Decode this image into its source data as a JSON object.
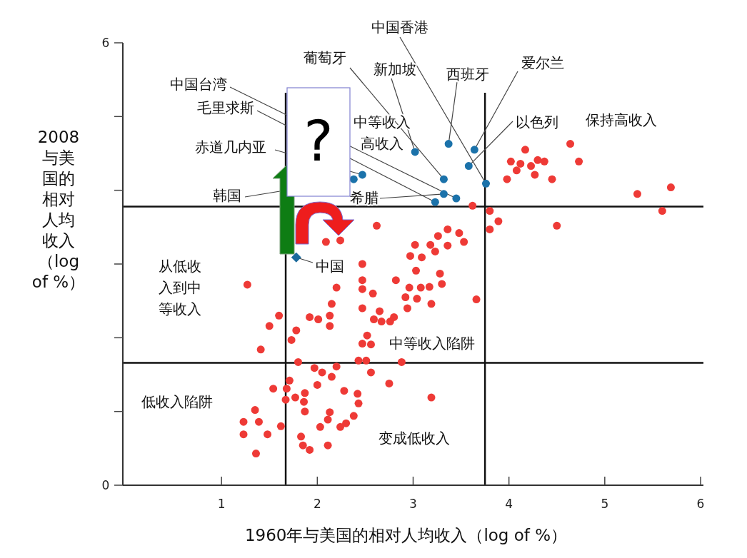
{
  "chart_data": {
    "type": "scatter",
    "xlabel": "1960年与美国的相对人均收入（log of %）",
    "ylabel": "2008与美国的相对人均收入（log of %）",
    "xlim": [
      0,
      6
    ],
    "ylim": [
      0,
      6
    ],
    "xticks": [
      1,
      2,
      3,
      4,
      5,
      6
    ],
    "yticks": [
      0,
      {
        "value": 1,
        "label": null
      },
      {
        "value": 2,
        "label": null
      },
      {
        "value": 3,
        "label": null
      },
      {
        "value": 4,
        "label": null
      },
      {
        "value": 5,
        "label": null
      },
      6
    ],
    "marker": "circle",
    "grid": false,
    "ref_lines": [
      {
        "axis": "x",
        "value": 1.67,
        "color": "#111111"
      },
      {
        "axis": "x",
        "value": 3.75,
        "color": "#111111"
      },
      {
        "axis": "y",
        "value": 3.78,
        "color": "#111111"
      },
      {
        "axis": "y",
        "value": 1.66,
        "color": "#111111"
      }
    ],
    "series": [
      {
        "color": "#ee3a36",
        "x": [
          4.64,
          4.17,
          4.02,
          4.12,
          4.08,
          4.3,
          4.37,
          4.73,
          4.23,
          4.27,
          3.98,
          4.45,
          5.34,
          5.69,
          5.6,
          4.5,
          3.62,
          3.8,
          3.89,
          3.8,
          2.62,
          2.09,
          2.24,
          3.36,
          3.48,
          3.26,
          3.53,
          3.02,
          3.18,
          3.36,
          3.23,
          2.97,
          3.09,
          2.47,
          3.03,
          3.28,
          2.82,
          2.47,
          2.2,
          2.47,
          2.96,
          3.08,
          3.17,
          3.3,
          2.58,
          1.27,
          2.92,
          3.04,
          3.19,
          3.66,
          2.15,
          2.47,
          2.94,
          2.65,
          1.6,
          2.13,
          1.92,
          2.01,
          2.59,
          2.67,
          2.76,
          2.8,
          2.13,
          1.5,
          1.78,
          1.73,
          2.52,
          2.47,
          2.56,
          1.41,
          1.8,
          2.43,
          2.51,
          2.88,
          1.97,
          2.05,
          2.2,
          2.15,
          2.56,
          2.75,
          1.71,
          1.54,
          1.68,
          2.0,
          2.28,
          2.42,
          1.87,
          1.77,
          1.67,
          1.86,
          2.43,
          3.19,
          1.87,
          2.13,
          1.35,
          1.23,
          1.39,
          2.11,
          2.38,
          2.3,
          2.24,
          2.03,
          1.62,
          1.23,
          1.48,
          1.83,
          1.85,
          1.92,
          2.11,
          1.36
        ],
        "values": [
          4.63,
          4.55,
          4.39,
          4.36,
          4.27,
          4.41,
          4.39,
          4.39,
          4.33,
          4.21,
          4.15,
          4.15,
          3.95,
          4.04,
          3.72,
          3.52,
          3.79,
          3.72,
          3.58,
          3.47,
          3.52,
          3.3,
          3.32,
          3.47,
          3.42,
          3.38,
          3.3,
          3.26,
          3.26,
          3.25,
          3.17,
          3.11,
          3.09,
          3.0,
          2.91,
          2.87,
          2.78,
          2.78,
          2.68,
          2.66,
          2.68,
          2.68,
          2.69,
          2.73,
          2.6,
          2.72,
          2.55,
          2.53,
          2.46,
          2.52,
          2.46,
          2.4,
          2.4,
          2.36,
          2.3,
          2.3,
          2.28,
          2.25,
          2.25,
          2.22,
          2.22,
          2.28,
          2.16,
          2.16,
          2.1,
          1.97,
          2.03,
          1.92,
          1.91,
          1.84,
          1.67,
          1.69,
          1.69,
          1.67,
          1.59,
          1.53,
          1.61,
          1.47,
          1.53,
          1.38,
          1.42,
          1.31,
          1.31,
          1.36,
          1.28,
          1.24,
          1.25,
          1.19,
          1.16,
          1.13,
          1.11,
          1.19,
          1.0,
          0.99,
          1.02,
          0.86,
          0.86,
          0.89,
          0.94,
          0.84,
          0.79,
          0.79,
          0.8,
          0.69,
          0.69,
          0.66,
          0.54,
          0.48,
          0.54,
          0.43
        ]
      },
      {
        "color": "#1b72aa",
        "x": [
          3.02,
          3.37,
          3.64,
          3.58,
          3.32,
          3.76,
          3.32,
          3.45,
          3.23,
          2.38,
          2.47
        ],
        "values": [
          4.52,
          4.63,
          4.55,
          4.33,
          4.15,
          4.09,
          3.95,
          3.89,
          3.84,
          4.15,
          4.21
        ]
      },
      {
        "color": "#1b6a9c",
        "marker": "diamond",
        "x": [
          1.78
        ],
        "values": [
          3.09
        ]
      }
    ],
    "annotations": [
      {
        "text": "中国香港",
        "x": 3.76,
        "y": 4.09
      },
      {
        "text": "葡萄牙",
        "x": 3.32,
        "y": 4.15
      },
      {
        "text": "新加坡",
        "x": 3.02,
        "y": 4.52
      },
      {
        "text": "西班牙",
        "x": 3.37,
        "y": 4.63
      },
      {
        "text": "爱尔兰",
        "x": 3.64,
        "y": 4.55
      },
      {
        "text": "以色列",
        "x": 3.58,
        "y": 4.33
      },
      {
        "text": "中国台湾",
        "x": 3.45,
        "y": 3.89
      },
      {
        "text": "毛里求斯",
        "x": 3.23,
        "y": 3.84
      },
      {
        "text": "赤道几内亚",
        "x": 2.47,
        "y": 4.21
      },
      {
        "text": "韩国",
        "x": 2.38,
        "y": 4.15
      },
      {
        "text": "希腊",
        "x": 3.32,
        "y": 3.95
      },
      {
        "text": "中国",
        "x": 1.78,
        "y": 3.09
      },
      "保持高收入",
      "中等收入高收入",
      "从低收入到中等收入",
      "中等收入陷阱",
      "低收入陷阱",
      "变成低收入",
      "?"
    ]
  }
}
